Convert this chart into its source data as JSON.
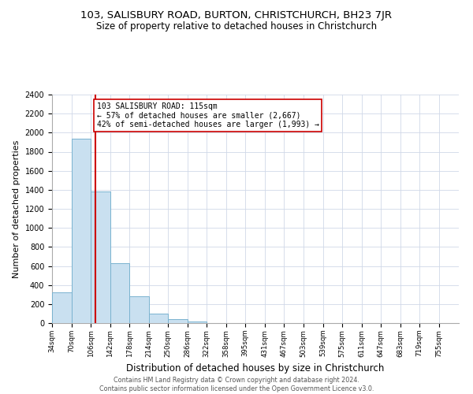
{
  "title": "103, SALISBURY ROAD, BURTON, CHRISTCHURCH, BH23 7JR",
  "subtitle": "Size of property relative to detached houses in Christchurch",
  "xlabel": "Distribution of detached houses by size in Christchurch",
  "ylabel": "Number of detached properties",
  "bar_values": [
    320,
    1940,
    1380,
    630,
    280,
    100,
    45,
    20,
    0,
    0,
    0,
    0,
    0,
    0,
    0,
    0,
    0,
    0,
    0,
    0
  ],
  "bar_left_edges": [
    34,
    70,
    106,
    142,
    178,
    214,
    250,
    286,
    322,
    358,
    395,
    431,
    467,
    503,
    539,
    575,
    611,
    647,
    683,
    719
  ],
  "bin_width": 36,
  "x_tick_labels": [
    "34sqm",
    "70sqm",
    "106sqm",
    "142sqm",
    "178sqm",
    "214sqm",
    "250sqm",
    "286sqm",
    "322sqm",
    "358sqm",
    "395sqm",
    "431sqm",
    "467sqm",
    "503sqm",
    "539sqm",
    "575sqm",
    "611sqm",
    "647sqm",
    "683sqm",
    "719sqm",
    "755sqm"
  ],
  "ylim": [
    0,
    2400
  ],
  "yticks": [
    0,
    200,
    400,
    600,
    800,
    1000,
    1200,
    1400,
    1600,
    1800,
    2000,
    2200,
    2400
  ],
  "bar_color": "#c9e0f0",
  "bar_edge_color": "#7ab3d0",
  "vline_x": 115,
  "vline_color": "#cc0000",
  "annotation_title": "103 SALISBURY ROAD: 115sqm",
  "annotation_line1": "← 57% of detached houses are smaller (2,667)",
  "annotation_line2": "42% of semi-detached houses are larger (1,993) →",
  "annotation_box_color": "#ffffff",
  "annotation_box_edge": "#cc0000",
  "background_color": "#ffffff",
  "grid_color": "#d0d8e8",
  "footer_line1": "Contains HM Land Registry data © Crown copyright and database right 2024.",
  "footer_line2": "Contains public sector information licensed under the Open Government Licence v3.0.",
  "title_fontsize": 9.5,
  "subtitle_fontsize": 8.5,
  "xlabel_fontsize": 8.5,
  "ylabel_fontsize": 8
}
